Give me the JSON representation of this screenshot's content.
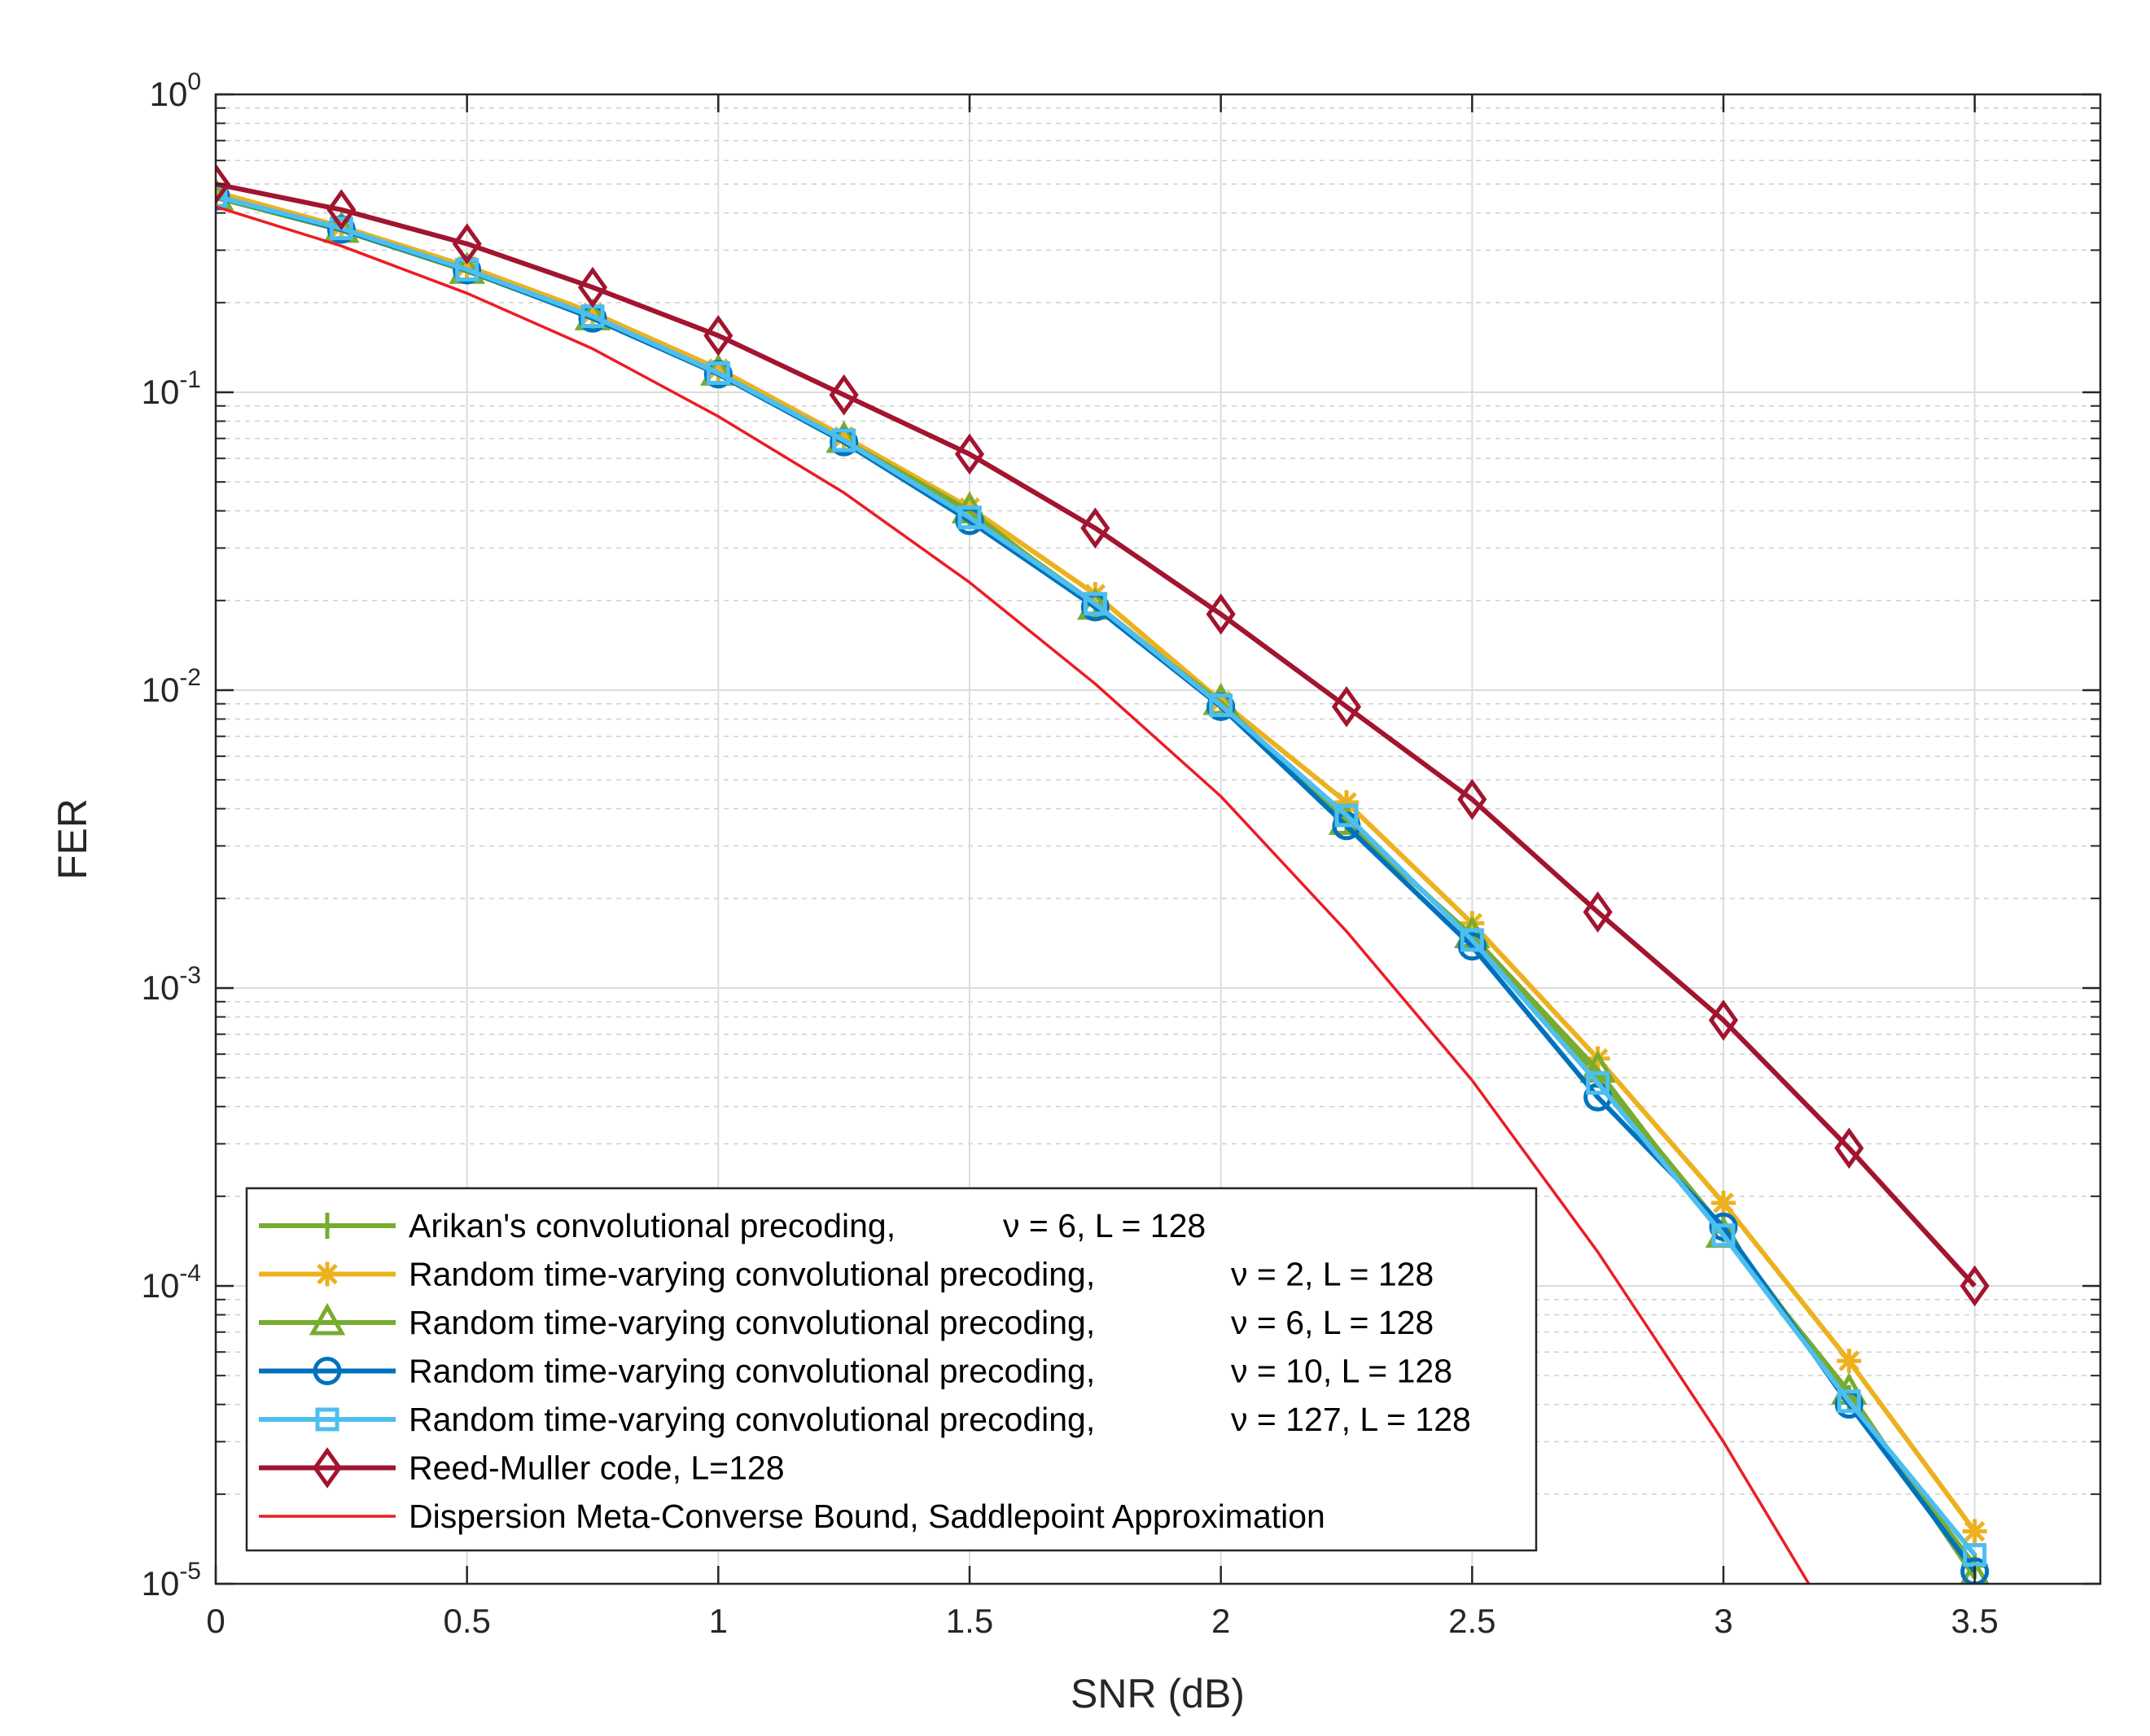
{
  "chart_data": {
    "type": "line",
    "title": "",
    "xlabel": "SNR (dB)",
    "ylabel": "FER",
    "xscale": "linear",
    "yscale": "log",
    "xlim": [
      0,
      3.75
    ],
    "ylim": [
      1e-05,
      1
    ],
    "grid": true,
    "minor_grid": true,
    "legend_position": "bottom-left",
    "x_ticks": [
      {
        "value": 0,
        "label": "0"
      },
      {
        "value": 0.5,
        "label": "0.5"
      },
      {
        "value": 1,
        "label": "1"
      },
      {
        "value": 1.5,
        "label": "1.5"
      },
      {
        "value": 2,
        "label": "2"
      },
      {
        "value": 2.5,
        "label": "2.5"
      },
      {
        "value": 3,
        "label": "3"
      },
      {
        "value": 3.5,
        "label": "3.5"
      }
    ],
    "y_ticks": [
      {
        "exp": 0,
        "base": "10",
        "sup": "0"
      },
      {
        "exp": -1,
        "base": "10",
        "sup": "-1"
      },
      {
        "exp": -2,
        "base": "10",
        "sup": "-2"
      },
      {
        "exp": -3,
        "base": "10",
        "sup": "-3"
      },
      {
        "exp": -4,
        "base": "10",
        "sup": "-4"
      },
      {
        "exp": -5,
        "base": "10",
        "sup": "-5"
      }
    ],
    "series": [
      {
        "name": "arikan-nu6",
        "label": "Arikan's convolutional precoding,",
        "param": "ν = 6, L = 128",
        "color": "#77ac30",
        "marker": "plus",
        "line_width": "thick",
        "x": [
          0,
          0.25,
          0.5,
          0.75,
          1,
          1.25,
          1.5,
          1.75,
          2,
          2.25,
          2.5,
          2.75,
          3,
          3.25,
          3.5
        ],
        "y": [
          0.46,
          0.355,
          0.26,
          0.18,
          0.117,
          0.07,
          0.039,
          0.0195,
          0.009,
          0.0037,
          0.00148,
          0.00051,
          0.000155,
          4.2e-05,
          1.15e-05
        ]
      },
      {
        "name": "random-nu2",
        "label": "Random time-varying convolutional precoding,",
        "param": "ν = 2, L = 128",
        "color": "#edb120",
        "marker": "asterisk",
        "line_width": "thick",
        "x": [
          0,
          0.25,
          0.5,
          0.75,
          1,
          1.25,
          1.5,
          1.75,
          2,
          2.25,
          2.5,
          2.75,
          3,
          3.25,
          3.5
        ],
        "y": [
          0.47,
          0.36,
          0.265,
          0.185,
          0.12,
          0.071,
          0.041,
          0.021,
          0.0092,
          0.0042,
          0.00165,
          0.00058,
          0.00019,
          5.6e-05,
          1.5e-05
        ]
      },
      {
        "name": "random-nu6",
        "label": "Random time-varying convolutional precoding,",
        "param": "ν = 6, L = 128",
        "color": "#77ac30",
        "marker": "triangle",
        "line_width": "thick",
        "x": [
          0,
          0.25,
          0.5,
          0.75,
          1,
          1.25,
          1.5,
          1.75,
          2,
          2.25,
          2.5,
          2.75,
          3,
          3.25,
          3.5
        ],
        "y": [
          0.45,
          0.35,
          0.255,
          0.178,
          0.116,
          0.069,
          0.04,
          0.019,
          0.0091,
          0.0036,
          0.0015,
          0.00053,
          0.000148,
          4.4e-05,
          1.05e-05
        ]
      },
      {
        "name": "random-nu10",
        "label": "Random time-varying convolutional precoding,",
        "param": "ν = 10, L = 128",
        "color": "#0072bd",
        "marker": "circle",
        "line_width": "thick",
        "x": [
          0,
          0.25,
          0.5,
          0.75,
          1,
          1.25,
          1.5,
          1.75,
          2,
          2.25,
          2.5,
          2.75,
          3,
          3.25,
          3.5
        ],
        "y": [
          0.455,
          0.352,
          0.257,
          0.177,
          0.115,
          0.068,
          0.037,
          0.019,
          0.0088,
          0.0035,
          0.00138,
          0.00043,
          0.000158,
          4e-05,
          1.1e-05
        ]
      },
      {
        "name": "random-nu127",
        "label": "Random time-varying convolutional precoding,",
        "param": "ν = 127, L = 128",
        "color": "#4dbeee",
        "marker": "square",
        "line_width": "thick",
        "x": [
          0,
          0.25,
          0.5,
          0.75,
          1,
          1.25,
          1.5,
          1.75,
          2,
          2.25,
          2.5,
          2.75,
          3,
          3.25,
          3.5
        ],
        "y": [
          0.455,
          0.355,
          0.258,
          0.18,
          0.116,
          0.069,
          0.038,
          0.0195,
          0.0089,
          0.0038,
          0.00145,
          0.00048,
          0.000148,
          4.1e-05,
          1.25e-05
        ]
      },
      {
        "name": "reed-muller",
        "label": "Reed-Muller code, L=128",
        "param": "",
        "color": "#a2142f",
        "marker": "diamond",
        "line_width": "thick",
        "x": [
          0,
          0.25,
          0.5,
          0.75,
          1,
          1.25,
          1.5,
          1.75,
          2,
          2.25,
          2.5,
          2.75,
          3,
          3.25,
          3.5
        ],
        "y": [
          0.5,
          0.41,
          0.315,
          0.225,
          0.155,
          0.098,
          0.062,
          0.035,
          0.018,
          0.0088,
          0.0043,
          0.0018,
          0.00078,
          0.00029,
          0.0001
        ]
      },
      {
        "name": "meta-converse",
        "label": "Dispersion Meta-Converse Bound, Saddlepoint Approximation",
        "param": "",
        "color": "#ec1c24",
        "marker": "none",
        "line_width": "thin",
        "x": [
          0,
          0.25,
          0.5,
          0.75,
          1,
          1.25,
          1.5,
          1.75,
          2,
          2.25,
          2.5,
          2.75,
          3,
          3.17
        ],
        "y": [
          0.42,
          0.31,
          0.215,
          0.14,
          0.083,
          0.046,
          0.023,
          0.0105,
          0.0044,
          0.00155,
          0.00049,
          0.00013,
          3e-05,
          1e-05
        ]
      }
    ]
  }
}
